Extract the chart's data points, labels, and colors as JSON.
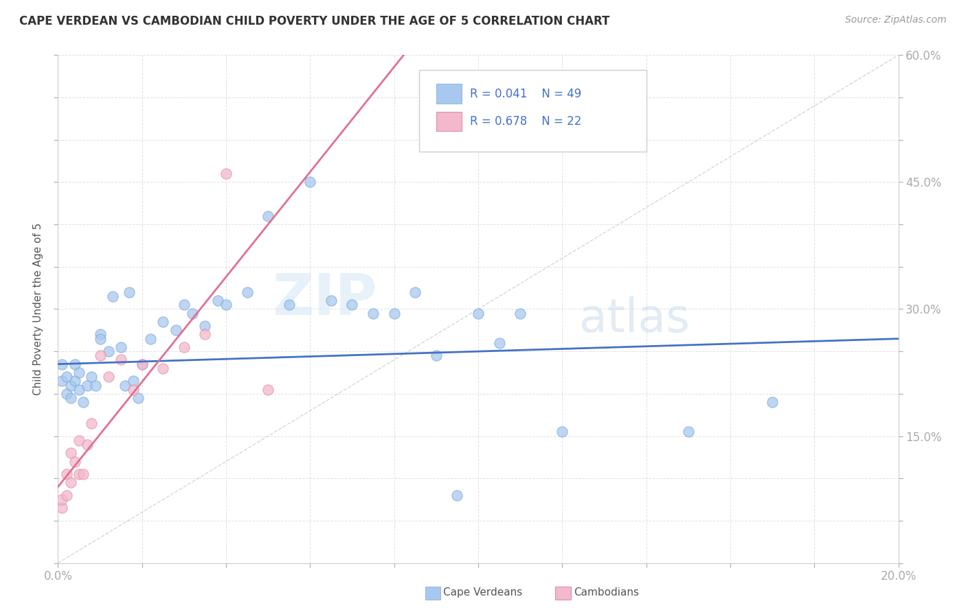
{
  "title": "CAPE VERDEAN VS CAMBODIAN CHILD POVERTY UNDER THE AGE OF 5 CORRELATION CHART",
  "source": "Source: ZipAtlas.com",
  "ylabel": "Child Poverty Under the Age of 5",
  "xlim": [
    0.0,
    0.2
  ],
  "ylim": [
    0.0,
    0.6
  ],
  "xticks": [
    0.0,
    0.02,
    0.04,
    0.06,
    0.08,
    0.1,
    0.12,
    0.14,
    0.16,
    0.18,
    0.2
  ],
  "yticks": [
    0.0,
    0.05,
    0.1,
    0.15,
    0.2,
    0.25,
    0.3,
    0.35,
    0.4,
    0.45,
    0.5,
    0.55,
    0.6
  ],
  "ytick_labels_right": [
    "",
    "",
    "",
    "15.0%",
    "",
    "",
    "30.0%",
    "",
    "",
    "45.0%",
    "",
    "",
    "60.0%"
  ],
  "xtick_labels": [
    "0.0%",
    "",
    "",
    "",
    "",
    "",
    "",
    "",
    "",
    "",
    "20.0%"
  ],
  "cape_verdean_color": "#a8c8f0",
  "cambodian_color": "#f4b8cc",
  "cape_verdean_line_color": "#4472c4",
  "cambodian_line_color": "#e07090",
  "ref_line_color": "#cccccc",
  "R_cape": 0.041,
  "N_cape": 49,
  "R_camb": 0.678,
  "N_camb": 22,
  "legend_cape_label": "Cape Verdeans",
  "legend_camb_label": "Cambodians",
  "background_color": "#ffffff",
  "grid_color": "#dddddd",
  "watermark_zip": "ZIP",
  "watermark_atlas": "atlas",
  "cape_verdean_x": [
    0.001,
    0.001,
    0.002,
    0.002,
    0.003,
    0.003,
    0.004,
    0.004,
    0.005,
    0.005,
    0.006,
    0.007,
    0.008,
    0.009,
    0.01,
    0.01,
    0.012,
    0.013,
    0.015,
    0.016,
    0.017,
    0.018,
    0.019,
    0.02,
    0.022,
    0.025,
    0.028,
    0.03,
    0.032,
    0.035,
    0.038,
    0.04,
    0.045,
    0.05,
    0.055,
    0.06,
    0.065,
    0.07,
    0.075,
    0.08,
    0.085,
    0.09,
    0.095,
    0.1,
    0.105,
    0.11,
    0.12,
    0.15,
    0.17
  ],
  "cape_verdean_y": [
    0.235,
    0.215,
    0.22,
    0.2,
    0.21,
    0.195,
    0.235,
    0.215,
    0.225,
    0.205,
    0.19,
    0.21,
    0.22,
    0.21,
    0.27,
    0.265,
    0.25,
    0.315,
    0.255,
    0.21,
    0.32,
    0.215,
    0.195,
    0.235,
    0.265,
    0.285,
    0.275,
    0.305,
    0.295,
    0.28,
    0.31,
    0.305,
    0.32,
    0.41,
    0.305,
    0.45,
    0.31,
    0.305,
    0.295,
    0.295,
    0.32,
    0.245,
    0.08,
    0.295,
    0.26,
    0.295,
    0.155,
    0.155,
    0.19
  ],
  "cambodian_x": [
    0.001,
    0.001,
    0.002,
    0.002,
    0.003,
    0.003,
    0.004,
    0.005,
    0.005,
    0.006,
    0.007,
    0.008,
    0.01,
    0.012,
    0.015,
    0.018,
    0.02,
    0.025,
    0.03,
    0.035,
    0.04,
    0.05
  ],
  "cambodian_y": [
    0.065,
    0.075,
    0.08,
    0.105,
    0.095,
    0.13,
    0.12,
    0.105,
    0.145,
    0.105,
    0.14,
    0.165,
    0.245,
    0.22,
    0.24,
    0.205,
    0.235,
    0.23,
    0.255,
    0.27,
    0.46,
    0.205
  ],
  "cv_line_x0": 0.0,
  "cv_line_y0": 0.235,
  "cv_line_x1": 0.2,
  "cv_line_y1": 0.265,
  "cb_line_x0": 0.0,
  "cb_line_y0": 0.09,
  "cb_line_x1": 0.05,
  "cb_line_y1": 0.4
}
